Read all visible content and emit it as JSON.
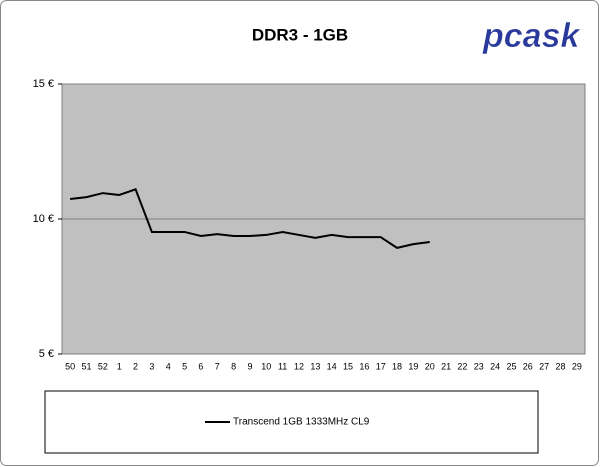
{
  "chart_data": {
    "type": "line",
    "title": "DDR3 - 1GB",
    "logo": "pcask",
    "categories": [
      "50",
      "51",
      "52",
      "1",
      "2",
      "3",
      "4",
      "5",
      "6",
      "7",
      "8",
      "9",
      "10",
      "11",
      "12",
      "13",
      "14",
      "15",
      "16",
      "17",
      "18",
      "19",
      "20",
      "21",
      "22",
      "23",
      "24",
      "25",
      "26",
      "27",
      "28",
      "29"
    ],
    "series": [
      {
        "name": "Transcend 1GB 1333MHz CL9",
        "color": "#000000",
        "values": [
          10.74,
          10.81,
          10.96,
          10.89,
          11.1,
          9.52,
          9.52,
          9.52,
          9.37,
          9.44,
          9.37,
          9.37,
          9.41,
          9.52,
          9.41,
          9.3,
          9.41,
          9.33,
          9.33,
          9.33,
          8.93,
          9.07,
          9.15,
          null,
          null,
          null,
          null,
          null,
          null,
          null,
          null,
          null
        ]
      }
    ],
    "ylim": [
      5,
      15
    ],
    "yticks": [
      {
        "value": 5,
        "label": "5 €"
      },
      {
        "value": 10,
        "label": "10 €"
      },
      {
        "value": 15,
        "label": "15 €"
      }
    ],
    "grid": true,
    "plot_background": "#c0c0c0",
    "legend": "bottom"
  }
}
